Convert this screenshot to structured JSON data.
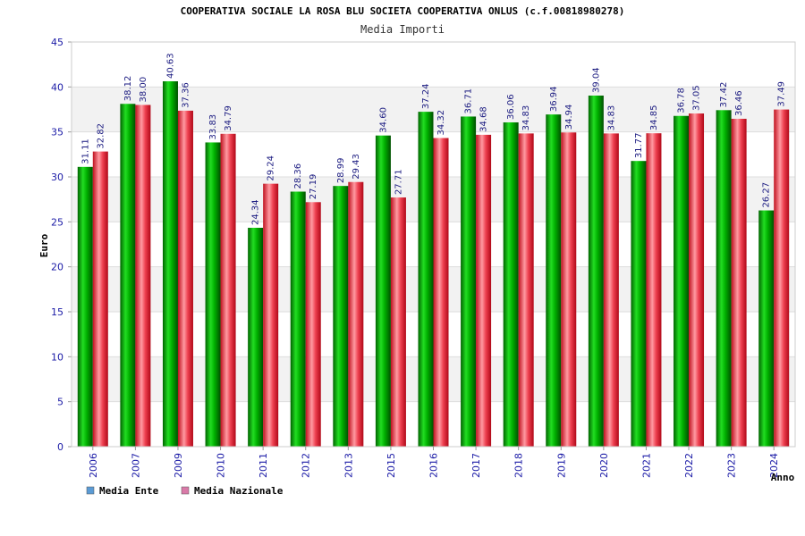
{
  "chart_data": {
    "type": "bar",
    "title": "COOPERATIVA SOCIALE LA ROSA BLU SOCIETA COOPERATIVA ONLUS (c.f.00818980278)",
    "subtitle": "Media Importi",
    "xlabel": "Anno",
    "ylabel": "Euro",
    "ylim": [
      0,
      45
    ],
    "yticks": [
      "0",
      "5",
      "10",
      "15",
      "20",
      "25",
      "30",
      "35",
      "40",
      "45"
    ],
    "grid": true,
    "legend_position": "bottom-left",
    "categories": [
      "2006",
      "2007",
      "2009",
      "2010",
      "2011",
      "2012",
      "2013",
      "2015",
      "2016",
      "2017",
      "2018",
      "2019",
      "2020",
      "2021",
      "2022",
      "2023",
      "2024"
    ],
    "series": [
      {
        "name": "Media Ente",
        "color": "#00aa00",
        "values": [
          31.11,
          38.12,
          40.63,
          33.83,
          24.34,
          28.36,
          28.99,
          34.6,
          37.24,
          36.71,
          36.06,
          36.94,
          39.04,
          31.77,
          36.78,
          37.42,
          26.27
        ],
        "labels": [
          "31.11",
          "38.12",
          "40.63",
          "33.83",
          "24.34",
          "28.36",
          "28.99",
          "34.60",
          "37.24",
          "36.71",
          "36.06",
          "36.94",
          "39.04",
          "31.77",
          "36.78",
          "37.42",
          "26.27"
        ]
      },
      {
        "name": "Media Nazionale",
        "color": "#dd2233",
        "values": [
          32.82,
          38.0,
          37.36,
          34.79,
          29.24,
          27.19,
          29.43,
          27.71,
          34.32,
          34.68,
          34.83,
          34.94,
          34.83,
          34.85,
          37.05,
          36.46,
          37.49
        ],
        "labels": [
          "32.82",
          "38.00",
          "37.36",
          "34.79",
          "29.24",
          "27.19",
          "29.43",
          "27.71",
          "34.32",
          "34.68",
          "34.83",
          "34.94",
          "34.83",
          "34.85",
          "37.05",
          "36.46",
          "37.49"
        ]
      }
    ],
    "legend": [
      {
        "label": "Media Ente",
        "color": "#5b9bd5"
      },
      {
        "label": "Media Nazionale",
        "color": "#d97aa8"
      }
    ]
  }
}
